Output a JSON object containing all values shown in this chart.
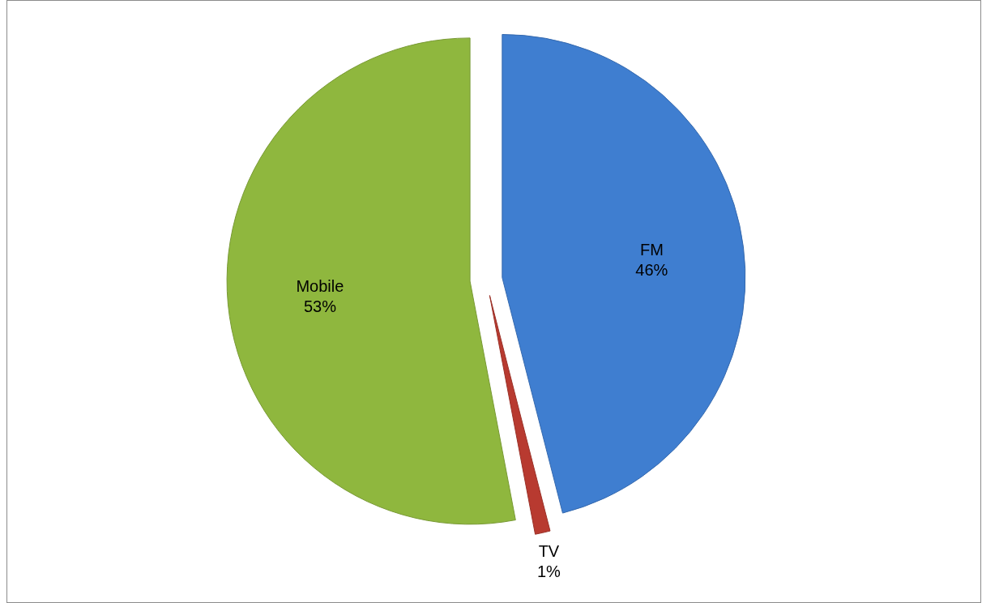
{
  "chart_data": {
    "type": "pie",
    "categories": [
      "FM",
      "TV",
      "Mobile"
    ],
    "values": [
      46,
      1,
      53
    ],
    "colors": [
      "#3f7ed0",
      "#b83a30",
      "#8fb73e"
    ],
    "value_labels": [
      "46%",
      "1%",
      "53%"
    ]
  }
}
